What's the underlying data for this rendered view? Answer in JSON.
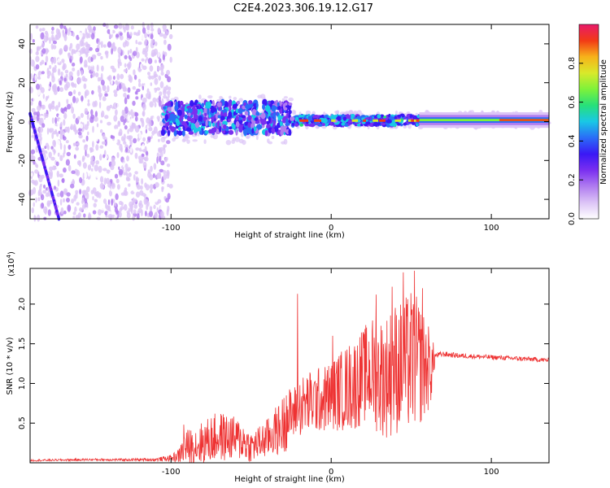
{
  "title": "C2E4.2023.306.19.12.G17",
  "chart_data": [
    {
      "type": "heatmap",
      "name": "spectrogram",
      "xlabel": "Height of straight line (km)",
      "ylabel": "Frequency (Hz)",
      "xlim": [
        -188,
        136
      ],
      "ylim": [
        -50,
        50
      ],
      "xticks": [
        -100,
        0,
        100
      ],
      "yticks": [
        -40,
        -20,
        0,
        20,
        40
      ],
      "colorbar": {
        "label": "Normalized spectral amplitude",
        "range": [
          0.0,
          1.0
        ],
        "ticks": [
          "0.0",
          "0.2",
          "0.4",
          "0.6",
          "0.8"
        ],
        "colormap": [
          "#ffffff",
          "#dcc4f6",
          "#b07cf0",
          "#7a2ff0",
          "#3a18f5",
          "#2a6cf7",
          "#19c8e6",
          "#27e07a",
          "#7ef23a",
          "#d9e92a",
          "#f7b21a",
          "#f23a16",
          "#e81a6a"
        ]
      },
      "features": {
        "noise_region_km": [
          -188,
          -100
        ],
        "signal_band_hz": [
          -5,
          7
        ],
        "strong_band_start_km": -25,
        "diagonal_line": {
          "from": [
            -188,
            4
          ],
          "to": [
            -170,
            -50
          ]
        }
      }
    },
    {
      "type": "line",
      "name": "snr",
      "xlabel": "Height of straight line (km)",
      "ylabel": "SNR (10 * v/v)",
      "ylabel_scale": "(x10",
      "ylabel_exp": "4",
      "ylabel_close": ")",
      "xlim": [
        -188,
        136
      ],
      "ylim": [
        0,
        24500
      ],
      "xticks": [
        -100,
        0,
        100
      ],
      "yticks": [
        {
          "value": 5000,
          "label": "0.5"
        },
        {
          "value": 10000,
          "label": "1.0"
        },
        {
          "value": 15000,
          "label": "1.5"
        },
        {
          "value": 20000,
          "label": "2.0"
        }
      ],
      "color": "#ee3333",
      "series": [
        {
          "x": [
            -188,
            -170,
            -150,
            -130,
            -110,
            -100,
            -95,
            -92,
            -90,
            -85,
            -80,
            -75,
            -70,
            -65,
            -60,
            -55,
            -50,
            -45,
            -40,
            -35,
            -32,
            -28,
            -25,
            -22,
            -20,
            -15,
            -10,
            -5,
            0,
            5,
            10,
            15,
            20,
            25,
            30,
            35,
            40,
            45,
            50,
            55,
            60,
            63,
            65,
            70,
            80,
            90,
            100,
            110,
            120,
            130,
            136
          ],
          "mean": [
            300,
            350,
            400,
            380,
            400,
            600,
            900,
            1800,
            2000,
            2200,
            2500,
            3000,
            3300,
            3200,
            3000,
            2800,
            2000,
            2500,
            3000,
            4000,
            4200,
            5500,
            6000,
            6500,
            7000,
            7500,
            7800,
            8000,
            8500,
            9000,
            9500,
            10000,
            11000,
            11500,
            11000,
            11000,
            12000,
            12000,
            13000,
            12500,
            12000,
            12000,
            13500,
            13700,
            13500,
            13400,
            13300,
            13200,
            13100,
            13000,
            12900
          ],
          "amp": [
            120,
            120,
            150,
            150,
            200,
            400,
            900,
            2000,
            2200,
            2500,
            2800,
            3000,
            3200,
            3000,
            2800,
            2500,
            2000,
            2200,
            2500,
            3000,
            3500,
            4000,
            3500,
            3500,
            3800,
            4000,
            4200,
            4200,
            4500,
            5000,
            5500,
            6000,
            6000,
            7000,
            7500,
            8000,
            8500,
            8500,
            9000,
            8000,
            6000,
            4000,
            400,
            350,
            320,
            300,
            300,
            300,
            300,
            300,
            300
          ]
        }
      ],
      "spikes": [
        {
          "x": -92,
          "y": 4800
        },
        {
          "x": -62,
          "y": 5600
        },
        {
          "x": -40,
          "y": 5400
        },
        {
          "x": -28,
          "y": 8500
        },
        {
          "x": -21,
          "y": 21300
        },
        {
          "x": 1,
          "y": 16000
        },
        {
          "x": 28,
          "y": 21200
        },
        {
          "x": 38,
          "y": 22200
        },
        {
          "x": 45,
          "y": 24000
        },
        {
          "x": 52,
          "y": 24200
        },
        {
          "x": 57,
          "y": 22000
        }
      ]
    }
  ]
}
